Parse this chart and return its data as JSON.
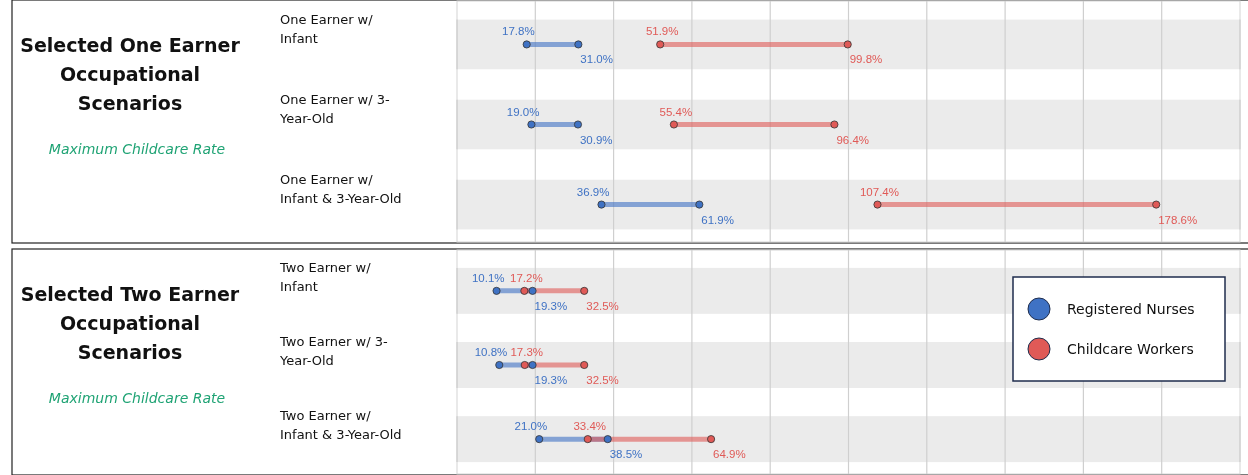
{
  "chart_data": [
    {
      "type": "scatter",
      "orientation": "horizontal",
      "title": "Selected One Earner Occupational Scenarios",
      "subtitle": "Maximum Childcare Rate",
      "categories": [
        "One Earner w/ Infant",
        "One Earner w/ 3-Year-Old",
        "One Earner w/ Infant & 3-Year-Old"
      ],
      "xlim": [
        0,
        200
      ],
      "xticks": [
        {
          "value": 20,
          "label": null
        },
        {
          "value": 40,
          "label": null
        },
        {
          "value": 60,
          "label": null
        },
        {
          "value": 80,
          "label": null
        },
        {
          "value": 100,
          "label": null
        },
        {
          "value": 120,
          "label": null
        },
        {
          "value": 140,
          "label": null
        },
        {
          "value": 160,
          "label": null
        },
        {
          "value": 180,
          "label": null
        }
      ],
      "grid": "x",
      "tick_labels": "y",
      "legend": false,
      "bands": [
        {
          "axis": "y",
          "from": "One Earner w/ Infant",
          "to": "One Earner w/ Infant",
          "color": "#ebebeb"
        },
        {
          "axis": "y",
          "from": "One Earner w/ 3-Year-Old",
          "to": "One Earner w/ 3-Year-Old",
          "color": "#ebebeb"
        },
        {
          "axis": "y",
          "from": "One Earner w/ Infant & 3-Year-Old",
          "to": "One Earner w/ Infant & 3-Year-Old",
          "color": "#ebebeb"
        }
      ],
      "series": [
        {
          "color": "#3f72c4",
          "values": [
            17.8,
            19.0,
            36.9
          ],
          "value_labels": [
            "17.8%",
            "19.0%",
            "36.9%"
          ]
        },
        {
          "color": "#3f72c4",
          "values": [
            31.0,
            30.9,
            61.9
          ],
          "value_labels": [
            "31.0%",
            "30.9%",
            "61.9%"
          ]
        },
        {
          "color": "#e05a57",
          "values": [
            51.9,
            55.4,
            107.4
          ],
          "value_labels": [
            "51.9%",
            "55.4%",
            "107.4%"
          ]
        },
        {
          "color": "#e05a57",
          "values": [
            99.8,
            96.4,
            178.6
          ],
          "value_labels": [
            "99.8%",
            "96.4%",
            "178.6%"
          ]
        }
      ]
    },
    {
      "type": "scatter",
      "orientation": "horizontal",
      "title": "Selected Two Earner Occupational Scenarios",
      "subtitle": "Maximum Childcare Rate",
      "categories": [
        "Two Earner w/ Infant",
        "Two Earner w/ 3-Year-Old",
        "Two Earner w/ Infant & 3-Year-Old"
      ],
      "xlim": [
        0,
        200
      ],
      "xticks": [
        {
          "value": 20,
          "label": null
        },
        {
          "value": 40,
          "label": null
        },
        {
          "value": 60,
          "label": null
        },
        {
          "value": 80,
          "label": null
        },
        {
          "value": 100,
          "label": null
        },
        {
          "value": 120,
          "label": null
        },
        {
          "value": 140,
          "label": null
        },
        {
          "value": 160,
          "label": null
        },
        {
          "value": 180,
          "label": null
        }
      ],
      "grid": "x",
      "tick_labels": "y",
      "legend": "top right",
      "bands": [
        {
          "axis": "y",
          "from": "Two Earner w/ Infant",
          "to": "Two Earner w/ Infant",
          "color": "#ebebeb"
        },
        {
          "axis": "y",
          "from": "Two Earner w/ 3-Year-Old",
          "to": "Two Earner w/ 3-Year-Old",
          "color": "#ebebeb"
        },
        {
          "axis": "y",
          "from": "Two Earner w/ Infant & 3-Year-Old",
          "to": "Two Earner w/ Infant & 3-Year-Old",
          "color": "#ebebeb"
        }
      ],
      "series": [
        {
          "name": "Registered Nurses",
          "color": "#3f72c4",
          "values": [
            10.1,
            10.8,
            21.0
          ],
          "value_labels": [
            "10.1%",
            "10.8%",
            "21.0%"
          ]
        },
        {
          "color": "#3f72c4",
          "values": [
            19.3,
            19.3,
            38.5
          ],
          "value_labels": [
            "19.3%",
            "19.3%",
            "38.5%"
          ]
        },
        {
          "name": "Childcare Workers",
          "color": "#e05a57",
          "values": [
            17.2,
            17.3,
            33.4
          ],
          "value_labels": [
            "17.2%",
            "17.3%",
            "33.4%"
          ]
        },
        {
          "color": "#e05a57",
          "values": [
            32.5,
            32.5,
            64.9
          ],
          "value_labels": [
            "32.5%",
            "32.5%",
            "64.9%"
          ]
        }
      ]
    }
  ]
}
